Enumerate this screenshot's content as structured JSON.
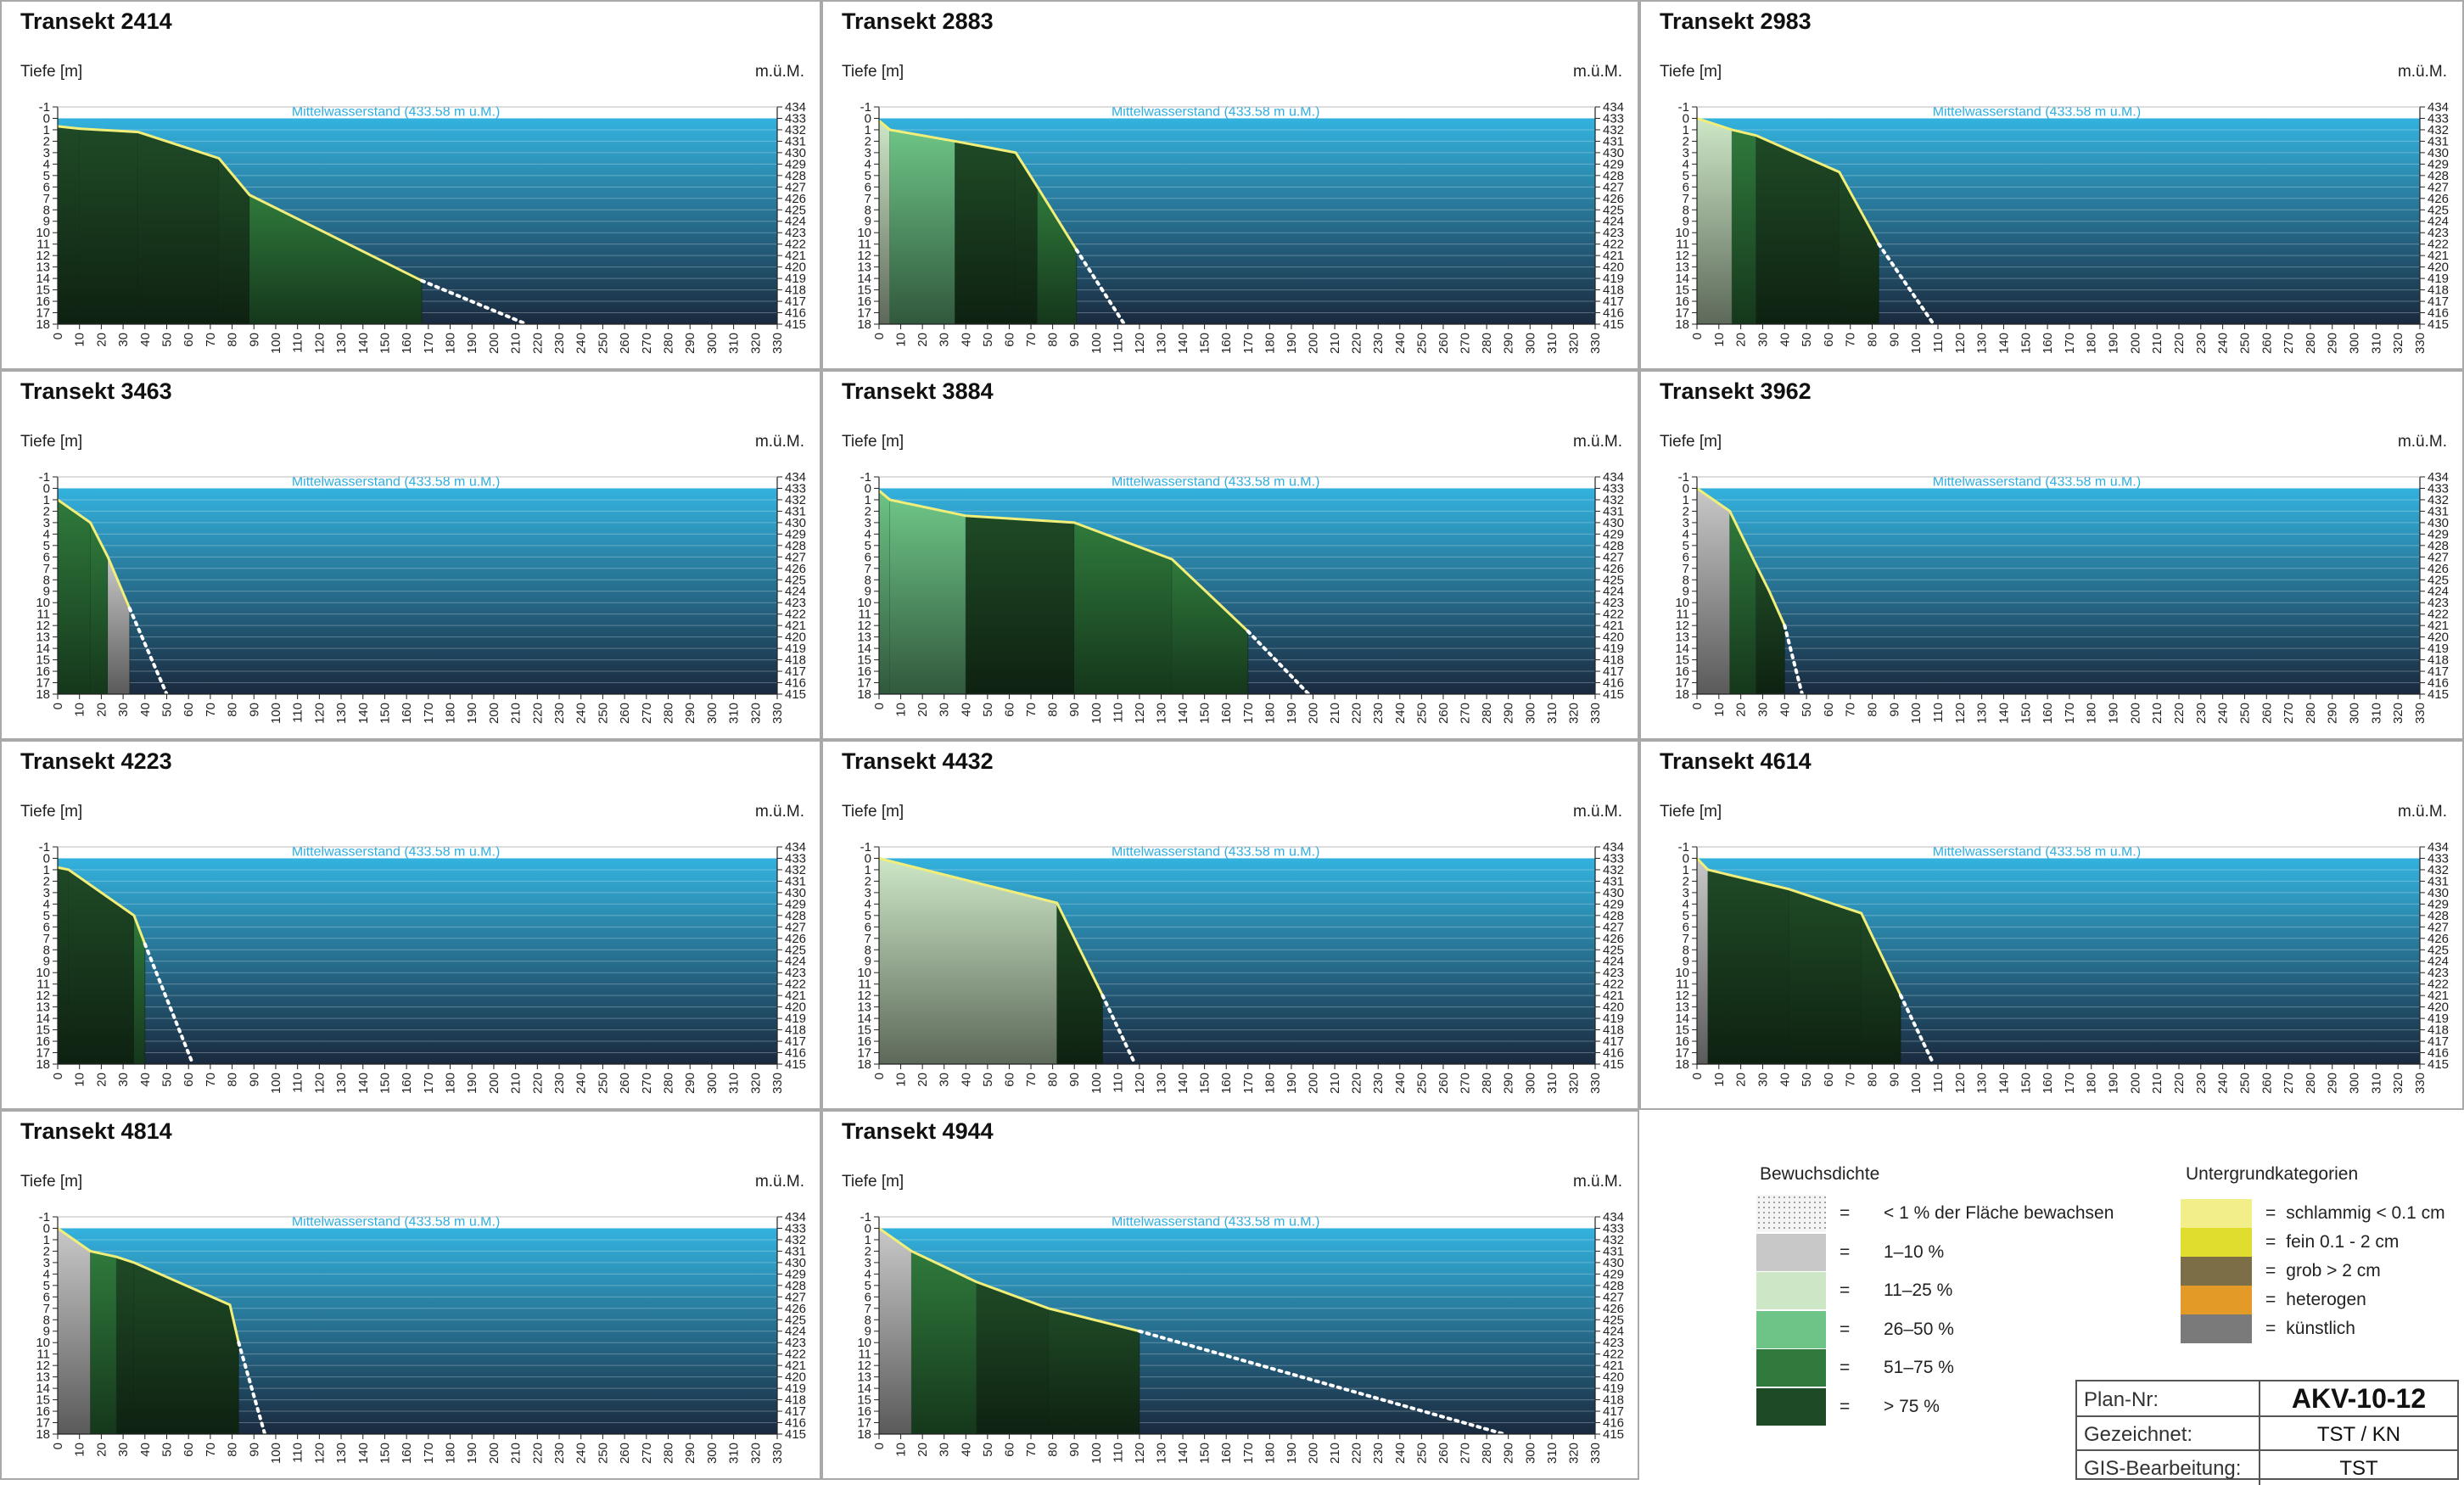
{
  "axis_left_label": "Tiefe [m]",
  "axis_right_label": "m.ü.M.",
  "water_label": "Mittelwasserstand (433.58 m ü.M.)",
  "depth_ticks": [
    "-1",
    "0",
    "1",
    "2",
    "3",
    "4",
    "5",
    "6",
    "7",
    "8",
    "9",
    "10",
    "11",
    "12",
    "13",
    "14",
    "15",
    "16",
    "17",
    "18"
  ],
  "elev_ticks": [
    "434",
    "433",
    "432",
    "431",
    "430",
    "429",
    "428",
    "427",
    "426",
    "425",
    "424",
    "423",
    "422",
    "421",
    "420",
    "419",
    "418",
    "417",
    "416",
    "415"
  ],
  "x_ticks": [
    "0",
    "10",
    "20",
    "30",
    "40",
    "50",
    "60",
    "70",
    "80",
    "90",
    "100",
    "110",
    "120",
    "130",
    "140",
    "150",
    "160",
    "170",
    "180",
    "190",
    "200",
    "210",
    "220",
    "230",
    "240",
    "250",
    "260",
    "270",
    "280",
    "290",
    "300",
    "310",
    "320",
    "330"
  ],
  "colors": {
    "water_top": "#33b2de",
    "water_bottom": "#1a2a3e",
    "profile_line": "#f2ee7a",
    "dens_lt1": "#e9e9e9",
    "dens_1_10": "#c8c8c8",
    "dens_11_25": "#cde7c6",
    "dens_26_50": "#6dc486",
    "dens_51_75": "#2f7a3c",
    "dens_gt75": "#1f4a26",
    "soil_schlammig": "#f2ee8a",
    "soil_fein": "#e0dd2e",
    "soil_grob": "#7c6e47",
    "soil_heterogen": "#e39a26",
    "soil_kuenstlich": "#7a7a7a"
  },
  "chart_data": [
    {
      "type": "area",
      "title": "Transekt 2414",
      "xlabel": "",
      "ylabel": "Tiefe [m]",
      "y2label": "m.ü.M.",
      "xlim": [
        0,
        330
      ],
      "ylim": [
        -1,
        18
      ],
      "water_level": "Mittelwasserstand (433.58 m ü.M.)",
      "x": [
        0,
        10,
        37,
        74,
        88,
        167
      ],
      "depth": [
        0.7,
        0.9,
        1.2,
        3.5,
        6.7,
        14.2
      ],
      "profile_end": [
        215,
        18
      ],
      "zones": [
        {
          "x": [
            0,
            10
          ],
          "density": ">75 %"
        },
        {
          "x": [
            10,
            37
          ],
          "density": ">75 %"
        },
        {
          "x": [
            37,
            74
          ],
          "density": ">75 %"
        },
        {
          "x": [
            74,
            88
          ],
          "density": ">75 %"
        },
        {
          "x": [
            88,
            167
          ],
          "density": "51–75 %"
        }
      ]
    },
    {
      "type": "area",
      "title": "Transekt 2883",
      "xlabel": "",
      "ylabel": "Tiefe [m]",
      "y2label": "m.ü.M.",
      "xlim": [
        0,
        330
      ],
      "ylim": [
        -1,
        18
      ],
      "water_level": "Mittelwasserstand (433.58 m ü.M.)",
      "x": [
        0,
        5,
        35,
        63,
        73,
        91
      ],
      "depth": [
        0.2,
        1.0,
        2.0,
        3.0,
        6.0,
        11.5
      ],
      "profile_end": [
        113,
        18
      ],
      "zones": [
        {
          "x": [
            0,
            5
          ],
          "density": "11–25 %"
        },
        {
          "x": [
            5,
            35
          ],
          "density": "26–50 %"
        },
        {
          "x": [
            35,
            63
          ],
          "density": ">75 %"
        },
        {
          "x": [
            63,
            73
          ],
          "density": ">75 %"
        },
        {
          "x": [
            73,
            91
          ],
          "density": "51–75 %"
        }
      ]
    },
    {
      "type": "area",
      "title": "Transekt 2983",
      "xlabel": "",
      "ylabel": "Tiefe [m]",
      "y2label": "m.ü.M.",
      "xlim": [
        0,
        330
      ],
      "ylim": [
        -1,
        18
      ],
      "water_level": "Mittelwasserstand (433.58 m ü.M.)",
      "x": [
        0,
        16,
        27,
        65,
        83
      ],
      "depth": [
        0.0,
        1.0,
        1.5,
        4.7,
        11.0
      ],
      "profile_end": [
        108,
        18
      ],
      "zones": [
        {
          "x": [
            0,
            16
          ],
          "density": "11–25 %"
        },
        {
          "x": [
            16,
            27
          ],
          "density": "51–75 %"
        },
        {
          "x": [
            27,
            65
          ],
          "density": ">75 %"
        },
        {
          "x": [
            65,
            83
          ],
          "density": ">75 %"
        }
      ]
    },
    {
      "type": "area",
      "title": "Transekt 3463",
      "xlabel": "",
      "ylabel": "Tiefe [m]",
      "y2label": "m.ü.M.",
      "xlim": [
        0,
        330
      ],
      "ylim": [
        -1,
        18
      ],
      "water_level": "Mittelwasserstand (433.58 m ü.M.)",
      "x": [
        0,
        15,
        23,
        33
      ],
      "depth": [
        1.0,
        3.0,
        6.0,
        10.5
      ],
      "profile_end": [
        50,
        18
      ],
      "zones": [
        {
          "x": [
            0,
            15
          ],
          "density": "51–75 %"
        },
        {
          "x": [
            15,
            23
          ],
          "density": "51–75 %"
        },
        {
          "x": [
            23,
            33
          ],
          "density": "1–10 %"
        }
      ]
    },
    {
      "type": "area",
      "title": "Transekt 3884",
      "xlabel": "",
      "ylabel": "Tiefe [m]",
      "y2label": "m.ü.M.",
      "xlim": [
        0,
        330
      ],
      "ylim": [
        -1,
        18
      ],
      "water_level": "Mittelwasserstand (433.58 m ü.M.)",
      "x": [
        0,
        5,
        40,
        90,
        135,
        170
      ],
      "depth": [
        0.2,
        1.0,
        2.4,
        3.0,
        6.2,
        12.5
      ],
      "profile_end": [
        198,
        18
      ],
      "zones": [
        {
          "x": [
            0,
            5
          ],
          "density": "26–50 %"
        },
        {
          "x": [
            5,
            40
          ],
          "density": "26–50 %"
        },
        {
          "x": [
            40,
            90
          ],
          "density": ">75 %"
        },
        {
          "x": [
            90,
            135
          ],
          "density": "51–75 %"
        },
        {
          "x": [
            135,
            170
          ],
          "density": "51–75 %"
        }
      ]
    },
    {
      "type": "area",
      "title": "Transekt 3962",
      "xlabel": "",
      "ylabel": "Tiefe [m]",
      "y2label": "m.ü.M.",
      "xlim": [
        0,
        330
      ],
      "ylim": [
        -1,
        18
      ],
      "water_level": "Mittelwasserstand (433.58 m ü.M.)",
      "x": [
        0,
        15,
        27,
        33,
        40
      ],
      "depth": [
        0.0,
        2.0,
        6.7,
        9.0,
        12.0
      ],
      "profile_end": [
        48,
        18
      ],
      "zones": [
        {
          "x": [
            0,
            15
          ],
          "density": "1–10 %"
        },
        {
          "x": [
            15,
            27
          ],
          "density": "51–75 %"
        },
        {
          "x": [
            27,
            40
          ],
          "density": ">75 %"
        }
      ]
    },
    {
      "type": "area",
      "title": "Transekt 4223",
      "xlabel": "",
      "ylabel": "Tiefe [m]",
      "y2label": "m.ü.M.",
      "xlim": [
        0,
        330
      ],
      "ylim": [
        -1,
        18
      ],
      "water_level": "Mittelwasserstand (433.58 m ü.M.)",
      "x": [
        0,
        5,
        35,
        40
      ],
      "depth": [
        0.8,
        1.0,
        5.0,
        7.5
      ],
      "profile_end": [
        62,
        18
      ],
      "zones": [
        {
          "x": [
            0,
            5
          ],
          "density": ">75 %"
        },
        {
          "x": [
            5,
            35
          ],
          "density": ">75 %"
        },
        {
          "x": [
            35,
            40
          ],
          "density": "51–75 %"
        }
      ]
    },
    {
      "type": "area",
      "title": "Transekt 4432",
      "xlabel": "",
      "ylabel": "Tiefe [m]",
      "y2label": "m.ü.M.",
      "xlim": [
        0,
        330
      ],
      "ylim": [
        -1,
        18
      ],
      "water_level": "Mittelwasserstand (433.58 m ü.M.)",
      "x": [
        0,
        82,
        103
      ],
      "depth": [
        0.0,
        3.9,
        12.0
      ],
      "profile_end": [
        118,
        18
      ],
      "zones": [
        {
          "x": [
            0,
            82
          ],
          "density": "11–25 %"
        },
        {
          "x": [
            82,
            103
          ],
          "density": ">75 %"
        }
      ]
    },
    {
      "type": "area",
      "title": "Transekt 4614",
      "xlabel": "",
      "ylabel": "Tiefe [m]",
      "y2label": "m.ü.M.",
      "xlim": [
        0,
        330
      ],
      "ylim": [
        -1,
        18
      ],
      "water_level": "Mittelwasserstand (433.58 m ü.M.)",
      "x": [
        0,
        5,
        42,
        75,
        93
      ],
      "depth": [
        0.0,
        1.0,
        2.7,
        4.8,
        12.0
      ],
      "profile_end": [
        108,
        18
      ],
      "zones": [
        {
          "x": [
            0,
            5
          ],
          "density": "1–10 %"
        },
        {
          "x": [
            5,
            42
          ],
          "density": ">75 %"
        },
        {
          "x": [
            42,
            75
          ],
          "density": ">75 %"
        },
        {
          "x": [
            75,
            93
          ],
          "density": ">75 %"
        }
      ]
    },
    {
      "type": "area",
      "title": "Transekt 4814",
      "xlabel": "",
      "ylabel": "Tiefe [m]",
      "y2label": "m.ü.M.",
      "xlim": [
        0,
        330
      ],
      "ylim": [
        -1,
        18
      ],
      "water_level": "Mittelwasserstand (433.58 m ü.M.)",
      "x": [
        0,
        15,
        27,
        35,
        79,
        83
      ],
      "depth": [
        0.0,
        2.0,
        2.5,
        3.0,
        6.7,
        10.0
      ],
      "profile_end": [
        95,
        18
      ],
      "zones": [
        {
          "x": [
            0,
            15
          ],
          "density": "1–10 %"
        },
        {
          "x": [
            15,
            27
          ],
          "density": "51–75 %"
        },
        {
          "x": [
            27,
            35
          ],
          "density": ">75 %"
        },
        {
          "x": [
            35,
            83
          ],
          "density": ">75 %"
        }
      ]
    },
    {
      "type": "area",
      "title": "Transekt 4944",
      "xlabel": "",
      "ylabel": "Tiefe [m]",
      "y2label": "m.ü.M.",
      "xlim": [
        0,
        330
      ],
      "ylim": [
        -1,
        18
      ],
      "water_level": "Mittelwasserstand (433.58 m ü.M.)",
      "x": [
        0,
        15,
        45,
        78,
        120
      ],
      "depth": [
        0.0,
        2.0,
        4.7,
        7.0,
        9.0
      ],
      "profile_end": [
        288,
        18
      ],
      "zones": [
        {
          "x": [
            0,
            15
          ],
          "density": "1–10 %"
        },
        {
          "x": [
            15,
            45
          ],
          "density": "51–75 %"
        },
        {
          "x": [
            45,
            78
          ],
          "density": ">75 %"
        },
        {
          "x": [
            78,
            120
          ],
          "density": ">75 %"
        }
      ]
    }
  ],
  "legend": {
    "density_title": "Bewuchsdichte",
    "density_items": [
      {
        "eq": "=",
        "label": "< 1 %  der Fläche bewachsen",
        "color": "#e9e9e9"
      },
      {
        "eq": "=",
        "label": "1–10 %",
        "color": "#c8c8c8"
      },
      {
        "eq": "=",
        "label": "11–25 %",
        "color": "#cde7c6"
      },
      {
        "eq": "=",
        "label": "26–50 %",
        "color": "#6dc486"
      },
      {
        "eq": "=",
        "label": "51–75 %",
        "color": "#2f7a3c"
      },
      {
        "eq": "=",
        "label": "> 75 %",
        "color": "#1f4a26"
      }
    ],
    "soil_title": "Untergrundkategorien",
    "soil_items": [
      {
        "eq": "=",
        "label": "schlammig < 0.1 cm",
        "color": "#f2ee8a"
      },
      {
        "eq": "=",
        "label": "fein 0.1 - 2 cm",
        "color": "#e0dd2e"
      },
      {
        "eq": "=",
        "label": "grob > 2 cm",
        "color": "#7c6e47"
      },
      {
        "eq": "=",
        "label": "heterogen",
        "color": "#e39a26"
      },
      {
        "eq": "=",
        "label": "künstlich",
        "color": "#7a7a7a"
      }
    ]
  },
  "title_block": [
    {
      "key": "Plan-Nr:",
      "value": "AKV-10-12"
    },
    {
      "key": "Gezeichnet:",
      "value": "TST / KN"
    },
    {
      "key": "GIS-Bearbeitung:",
      "value": "TST"
    }
  ]
}
